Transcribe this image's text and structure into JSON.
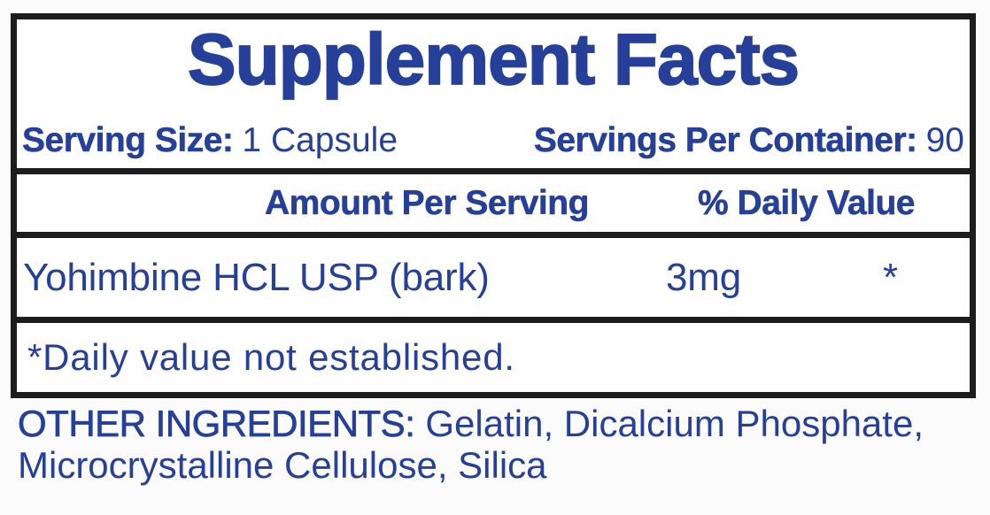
{
  "panel": {
    "title": "Supplement Facts",
    "serving": {
      "size_label": "Serving Size:",
      "size_value": "1 Capsule",
      "per_container_label": "Servings Per Container:",
      "per_container_value": "90"
    },
    "header": {
      "amount_col": "Amount Per Serving",
      "dv_col": "% Daily Value"
    },
    "rows": [
      {
        "name": "Yohimbine HCL USP (bark)",
        "amount": "3mg",
        "daily_value": "*"
      }
    ],
    "footnote": "*Daily value not established."
  },
  "other_ingredients": {
    "label": "OTHER INGREDIENTS:",
    "value": "Gelatin, Dicalcium Phosphate, Microcrystalline Cellulose, Silica"
  },
  "colors": {
    "text_blue": "#26409a",
    "border_black": "#1d1d1d",
    "background": "#fbfbfb"
  }
}
